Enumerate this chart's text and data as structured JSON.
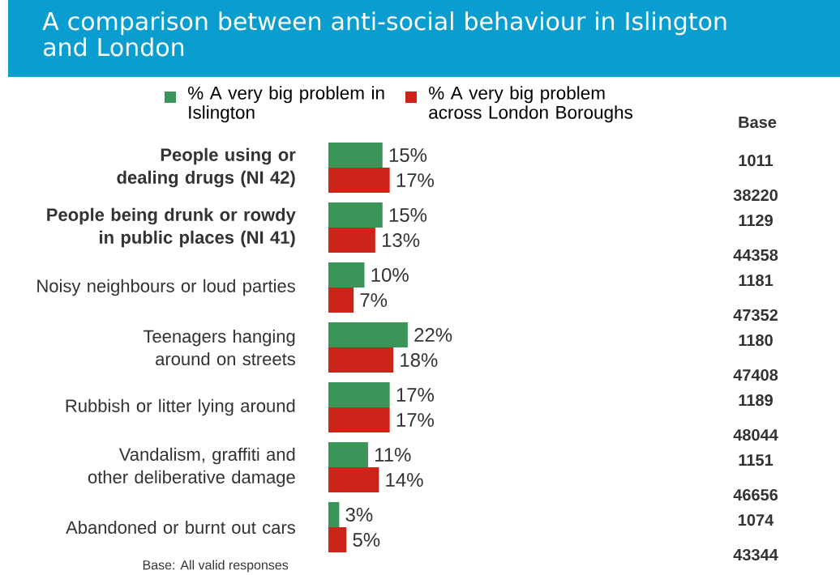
{
  "chart_data": {
    "type": "bar",
    "orientation": "horizontal",
    "title": "A comparison between anti-social behaviour in Islington and London",
    "categories": [
      "**People using or dealing drugs (NI 42)**",
      "**People being drunk or rowdy in public places (NI 41)**",
      "Noisy neighbours or loud parties",
      "Teenagers hanging around on streets",
      "Rubbish or litter lying around",
      "Vandalism, graffiti and other deliberative damage",
      "Abandoned or burnt out cars"
    ],
    "series": [
      {
        "name": "% A very big problem in Islington",
        "color": "#3a9558",
        "values": [
          15,
          15,
          10,
          22,
          17,
          11,
          3
        ],
        "value_labels": [
          "15%",
          "15%",
          "10%",
          "22%",
          "17%",
          "11%",
          "3%"
        ]
      },
      {
        "name": "% A very big problem across London Boroughs",
        "color": "#cc2418",
        "values": [
          17,
          13,
          7,
          18,
          17,
          14,
          5
        ],
        "value_labels": [
          "17%",
          "13%",
          "7%",
          "18%",
          "17%",
          "14%",
          "5%"
        ]
      }
    ],
    "tick_labels": "y",
    "legend": "top",
    "annotations": [
      "Base",
      "1011",
      "38220",
      "1129",
      "44358",
      "1181",
      "47352",
      "1180",
      "47408",
      "1189",
      "48044",
      "1151",
      "46656",
      "1074",
      "43344",
      "Base: All valid responses"
    ]
  }
}
